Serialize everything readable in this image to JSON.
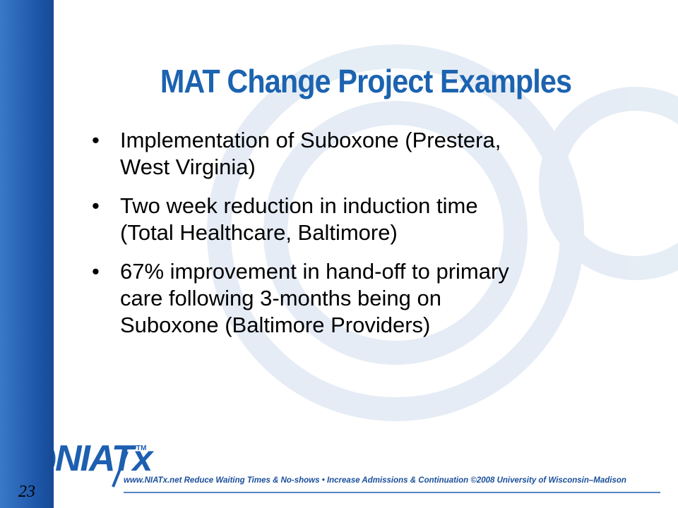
{
  "title": "MAT Change Project Examples",
  "bullets": [
    [
      "Implementation of Suboxone (Prestera,",
      "West Virginia)"
    ],
    [
      "Two week reduction in induction time",
      "(Total Healthcare, Baltimore)"
    ],
    [
      "67% improvement in hand-off to primary",
      "care following 3-months being on",
      "Suboxone (Baltimore Providers)"
    ]
  ],
  "logo": {
    "name": "NIATx",
    "mark": "TM"
  },
  "footer": "www.NIATx.net  Reduce Waiting Times & No-shows • Increase Admissions & Continuation   ©2008 University of Wisconsin–Madison",
  "page_number": "23"
}
